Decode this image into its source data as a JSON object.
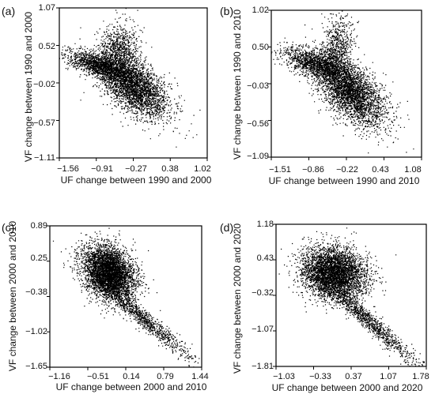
{
  "figure": {
    "panels": [
      {
        "label": "(a)",
        "xlabel": "UF change between 1990 and 2000",
        "ylabel": "VF change between 1990 and 2000",
        "xticks": [
          "−1.56",
          "−0.91",
          "−0.27",
          "0.38",
          "1.02"
        ],
        "yticks": [
          "1.07",
          "0.52",
          "−0.02",
          "−0.57",
          "−1.11"
        ]
      },
      {
        "label": "(b)",
        "xlabel": "UF change between 1990 and 2010",
        "ylabel": "VF change between 1990 and 2010",
        "xticks": [
          "−1.51",
          "−0.86",
          "−0.22",
          "0.43",
          "1.08"
        ],
        "yticks": [
          "1.02",
          "0.50",
          "−0.03",
          "−0.56",
          "−1.09"
        ]
      },
      {
        "label": "(c)",
        "xlabel": "UF change between 2000 and 2010",
        "ylabel": "VF change between 2000 and 2010",
        "xticks": [
          "−1.16",
          "−0.51",
          "0.14",
          "0.79",
          "1.44"
        ],
        "yticks": [
          "0.89",
          "0.25",
          "−0.38",
          "−1.02",
          "−1.65"
        ]
      },
      {
        "label": "(d)",
        "xlabel": "UF change between 2000 and 2020",
        "ylabel": "VF change between 2000 and 2020",
        "xticks": [
          "−1.03",
          "−0.33",
          "0.37",
          "1.07",
          "1.78"
        ],
        "yticks": [
          "1.18",
          "0.43",
          "−0.32",
          "−1.07",
          "−1.81"
        ]
      }
    ]
  },
  "chart_data": [
    {
      "type": "scatter",
      "xlabel": "UF change between 1990 and 2000",
      "ylabel": "VF change between 1990 and 2000",
      "xlim": [
        -1.56,
        1.02
      ],
      "ylim": [
        -1.11,
        1.07
      ],
      "x_tick_labels": [
        "−1.56",
        "−0.91",
        "−0.27",
        "0.38",
        "1.02"
      ],
      "y_tick_labels": [
        "1.07",
        "0.52",
        "−0.02",
        "−0.57",
        "−1.11"
      ],
      "clusters": [
        {
          "x": -0.25,
          "y": -0.08,
          "sx": 0.3,
          "sy": 0.22,
          "rho": -0.55,
          "weight": 0.55
        },
        {
          "x": -0.55,
          "y": 0.4,
          "sx": 0.18,
          "sy": 0.22,
          "rho": 0.2,
          "weight": 0.2
        },
        {
          "x": -0.9,
          "y": 0.25,
          "sx": 0.28,
          "sy": 0.1,
          "rho": -0.6,
          "weight": 0.25
        }
      ],
      "grid": false,
      "marker_color": "#000000"
    },
    {
      "type": "scatter",
      "xlabel": "UF change between 1990 and 2010",
      "ylabel": "VF change between 1990 and 2010",
      "xlim": [
        -1.51,
        1.08
      ],
      "ylim": [
        -1.09,
        1.02
      ],
      "x_tick_labels": [
        "−1.51",
        "−0.86",
        "−0.22",
        "0.43",
        "1.08"
      ],
      "y_tick_labels": [
        "1.02",
        "0.50",
        "−0.03",
        "−0.56",
        "−1.09"
      ],
      "clusters": [
        {
          "x": -0.15,
          "y": -0.15,
          "sx": 0.3,
          "sy": 0.25,
          "rho": -0.6,
          "weight": 0.6
        },
        {
          "x": -0.4,
          "y": 0.45,
          "sx": 0.14,
          "sy": 0.25,
          "rho": 0.3,
          "weight": 0.15
        },
        {
          "x": -0.75,
          "y": 0.25,
          "sx": 0.28,
          "sy": 0.12,
          "rho": -0.6,
          "weight": 0.25
        }
      ],
      "grid": false,
      "marker_color": "#000000"
    },
    {
      "type": "scatter",
      "xlabel": "UF change between 2000 and 2010",
      "ylabel": "VF change between 2000 and 2010",
      "xlim": [
        -1.16,
        1.44
      ],
      "ylim": [
        -1.65,
        0.89
      ],
      "x_tick_labels": [
        "−1.16",
        "−0.51",
        "0.14",
        "0.79",
        "1.44"
      ],
      "y_tick_labels": [
        "0.89",
        "0.25",
        "−0.38",
        "−1.02",
        "−1.65"
      ],
      "clusters": [
        {
          "x": -0.15,
          "y": 0.05,
          "sx": 0.22,
          "sy": 0.25,
          "rho": -0.3,
          "weight": 0.8
        },
        {
          "x": 0.35,
          "y": -0.7,
          "sx": 0.45,
          "sy": 0.4,
          "rho": -0.97,
          "weight": 0.2
        }
      ],
      "grid": false,
      "marker_color": "#000000"
    },
    {
      "type": "scatter",
      "xlabel": "UF change between 2000 and 2020",
      "ylabel": "VF change between 2000 and 2020",
      "xlim": [
        -1.03,
        1.78
      ],
      "ylim": [
        -1.81,
        1.18
      ],
      "x_tick_labels": [
        "−1.03",
        "−0.33",
        "0.37",
        "1.07",
        "1.78"
      ],
      "y_tick_labels": [
        "1.18",
        "0.43",
        "−0.32",
        "−1.07",
        "−1.81"
      ],
      "clusters": [
        {
          "x": 0.05,
          "y": 0.15,
          "sx": 0.3,
          "sy": 0.28,
          "rho": -0.1,
          "weight": 0.8
        },
        {
          "x": 0.7,
          "y": -0.85,
          "sx": 0.45,
          "sy": 0.45,
          "rho": -0.97,
          "weight": 0.2
        }
      ],
      "grid": false,
      "marker_color": "#000000"
    }
  ]
}
